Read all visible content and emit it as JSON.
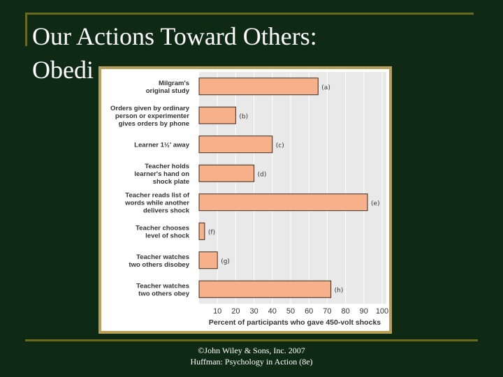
{
  "slide": {
    "title_line1": "Our Actions Toward Others:",
    "title_line2": "Obedi",
    "footer_line1": "©John Wiley & Sons, Inc. 2007",
    "footer_line2": "Huffman: Psychology in Action (8e)"
  },
  "colors": {
    "background": "#0f2a14",
    "bar_fill": "#f6b08a",
    "bar_stroke": "#3a2a20",
    "chart_panel": "#e9e9e9",
    "frame": "#b8a05a"
  },
  "chart_data": {
    "type": "bar",
    "orientation": "horizontal",
    "categories": [
      [
        "Milgram's",
        "original study"
      ],
      [
        "Orders given by ordinary",
        "person or experimenter",
        "gives orders by phone"
      ],
      [
        "Learner 1½' away"
      ],
      [
        "Teacher holds",
        "learner's hand on",
        "shock plate"
      ],
      [
        "Teacher reads list of",
        "words while another",
        "delivers shock"
      ],
      [
        "Teacher chooses",
        "level of shock"
      ],
      [
        "Teacher watches",
        "two others disobey"
      ],
      [
        "Teacher watches",
        "two others obey"
      ]
    ],
    "bar_labels": [
      "(a)",
      "(b)",
      "(c)",
      "(d)",
      "(e)",
      "(f)",
      "(g)",
      "(h)"
    ],
    "values": [
      65,
      20,
      40,
      30,
      92,
      3,
      10,
      72
    ],
    "xlim": [
      0,
      100
    ],
    "xticks": [
      10,
      20,
      30,
      40,
      50,
      60,
      70,
      80,
      90,
      100
    ],
    "xlabel": "Percent of participants who gave 450-volt shocks",
    "grid": true
  }
}
